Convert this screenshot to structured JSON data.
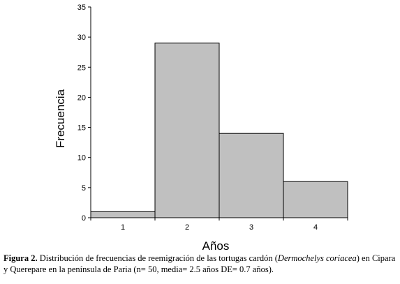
{
  "chart_data": {
    "type": "bar",
    "categories": [
      "1",
      "2",
      "3",
      "4"
    ],
    "values": [
      1,
      29,
      14,
      6
    ],
    "xlabel": "Años",
    "ylabel": "Frecuencia",
    "ylim": [
      0,
      35
    ],
    "yticks": [
      0,
      5,
      10,
      15,
      20,
      25,
      30,
      35
    ],
    "bar_color": "#c0c0c0",
    "bar_edge_color": "#000000",
    "grid": false
  },
  "caption": {
    "label": "Figura 2.",
    "text_before": " Distribución de frecuencias de reemigración de las tortugas cardón (",
    "species": "Dermochelys coriacea",
    "text_after": ") en Cipara y Querepare en la península de Paria (n= 50, media= 2.5 años DE= 0.7 años)."
  }
}
